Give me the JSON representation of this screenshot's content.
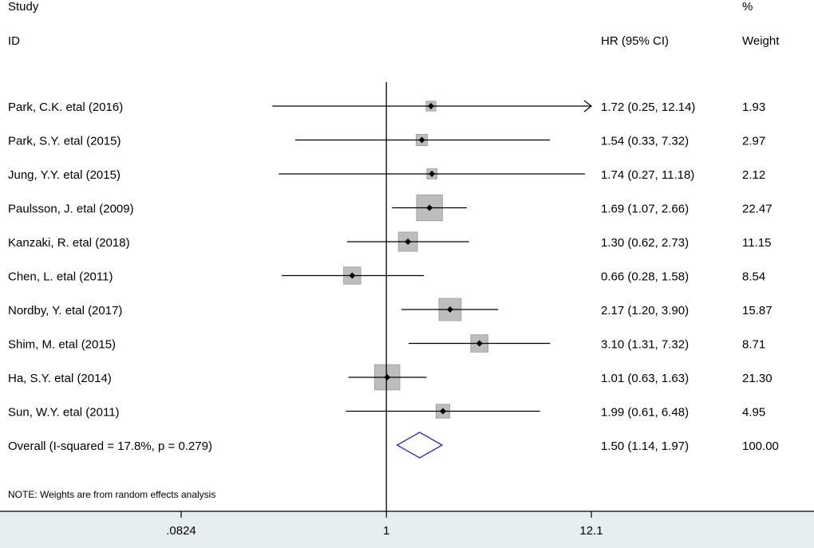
{
  "chart_data": {
    "type": "forest",
    "header": {
      "study_top": "Study",
      "study_bottom": "ID",
      "effect_header": "HR (95% CI)",
      "weight_top": "%",
      "weight_bottom": "Weight"
    },
    "studies": [
      {
        "label": "Park, C.K. etal (2016)",
        "hr": 1.72,
        "lo": 0.25,
        "hi": 12.14,
        "ci_text": "1.72 (0.25, 12.14)",
        "weight": 1.93,
        "weight_text": "1.93",
        "ci_truncated": true
      },
      {
        "label": "Park, S.Y. etal (2015)",
        "hr": 1.54,
        "lo": 0.33,
        "hi": 7.32,
        "ci_text": "1.54 (0.33, 7.32)",
        "weight": 2.97,
        "weight_text": "2.97"
      },
      {
        "label": "Jung, Y.Y. etal (2015)",
        "hr": 1.74,
        "lo": 0.27,
        "hi": 11.18,
        "ci_text": "1.74 (0.27, 11.18)",
        "weight": 2.12,
        "weight_text": "2.12"
      },
      {
        "label": "Paulsson, J. etal (2009)",
        "hr": 1.69,
        "lo": 1.07,
        "hi": 2.66,
        "ci_text": "1.69 (1.07, 2.66)",
        "weight": 22.47,
        "weight_text": "22.47"
      },
      {
        "label": "Kanzaki, R. etal (2018)",
        "hr": 1.3,
        "lo": 0.62,
        "hi": 2.73,
        "ci_text": "1.30 (0.62, 2.73)",
        "weight": 11.15,
        "weight_text": "11.15"
      },
      {
        "label": "Chen, L. etal (2011)",
        "hr": 0.66,
        "lo": 0.28,
        "hi": 1.58,
        "ci_text": "0.66 (0.28, 1.58)",
        "weight": 8.54,
        "weight_text": "8.54"
      },
      {
        "label": "Nordby, Y. etal  (2017)",
        "hr": 2.17,
        "lo": 1.2,
        "hi": 3.9,
        "ci_text": "2.17 (1.20, 3.90)",
        "weight": 15.87,
        "weight_text": "15.87"
      },
      {
        "label": "Shim, M. etal  (2015)",
        "hr": 3.1,
        "lo": 1.31,
        "hi": 7.32,
        "ci_text": "3.10 (1.31, 7.32)",
        "weight": 8.71,
        "weight_text": "8.71"
      },
      {
        "label": "Ha, S.Y. etal  (2014)",
        "hr": 1.01,
        "lo": 0.63,
        "hi": 1.63,
        "ci_text": "1.01 (0.63, 1.63)",
        "weight": 21.3,
        "weight_text": "21.30"
      },
      {
        "label": "Sun, W.Y. etal (2011)",
        "hr": 1.99,
        "lo": 0.61,
        "hi": 6.48,
        "ci_text": "1.99 (0.61, 6.48)",
        "weight": 4.95,
        "weight_text": "4.95"
      }
    ],
    "overall": {
      "label": "Overall  (I-squared = 17.8%, p = 0.279)",
      "hr": 1.5,
      "lo": 1.14,
      "hi": 1.97,
      "ci_text": "1.50 (1.14, 1.97)",
      "weight_text": "100.00"
    },
    "note": "NOTE: Weights are from random effects analysis",
    "x_axis": {
      "scale": "log",
      "null_value": 1,
      "range": [
        0.0824,
        12.1
      ],
      "ticks": [
        {
          "value": 0.0824,
          "label": ".0824"
        },
        {
          "value": 1,
          "label": "1"
        },
        {
          "value": 12.1,
          "label": "12.1"
        }
      ]
    },
    "colors": {
      "marker_box": "#bdbdbd",
      "marker_box_border": "#9a9a9a",
      "diamond": "#1f2fd6",
      "axis_band": "#e6eef0"
    }
  }
}
